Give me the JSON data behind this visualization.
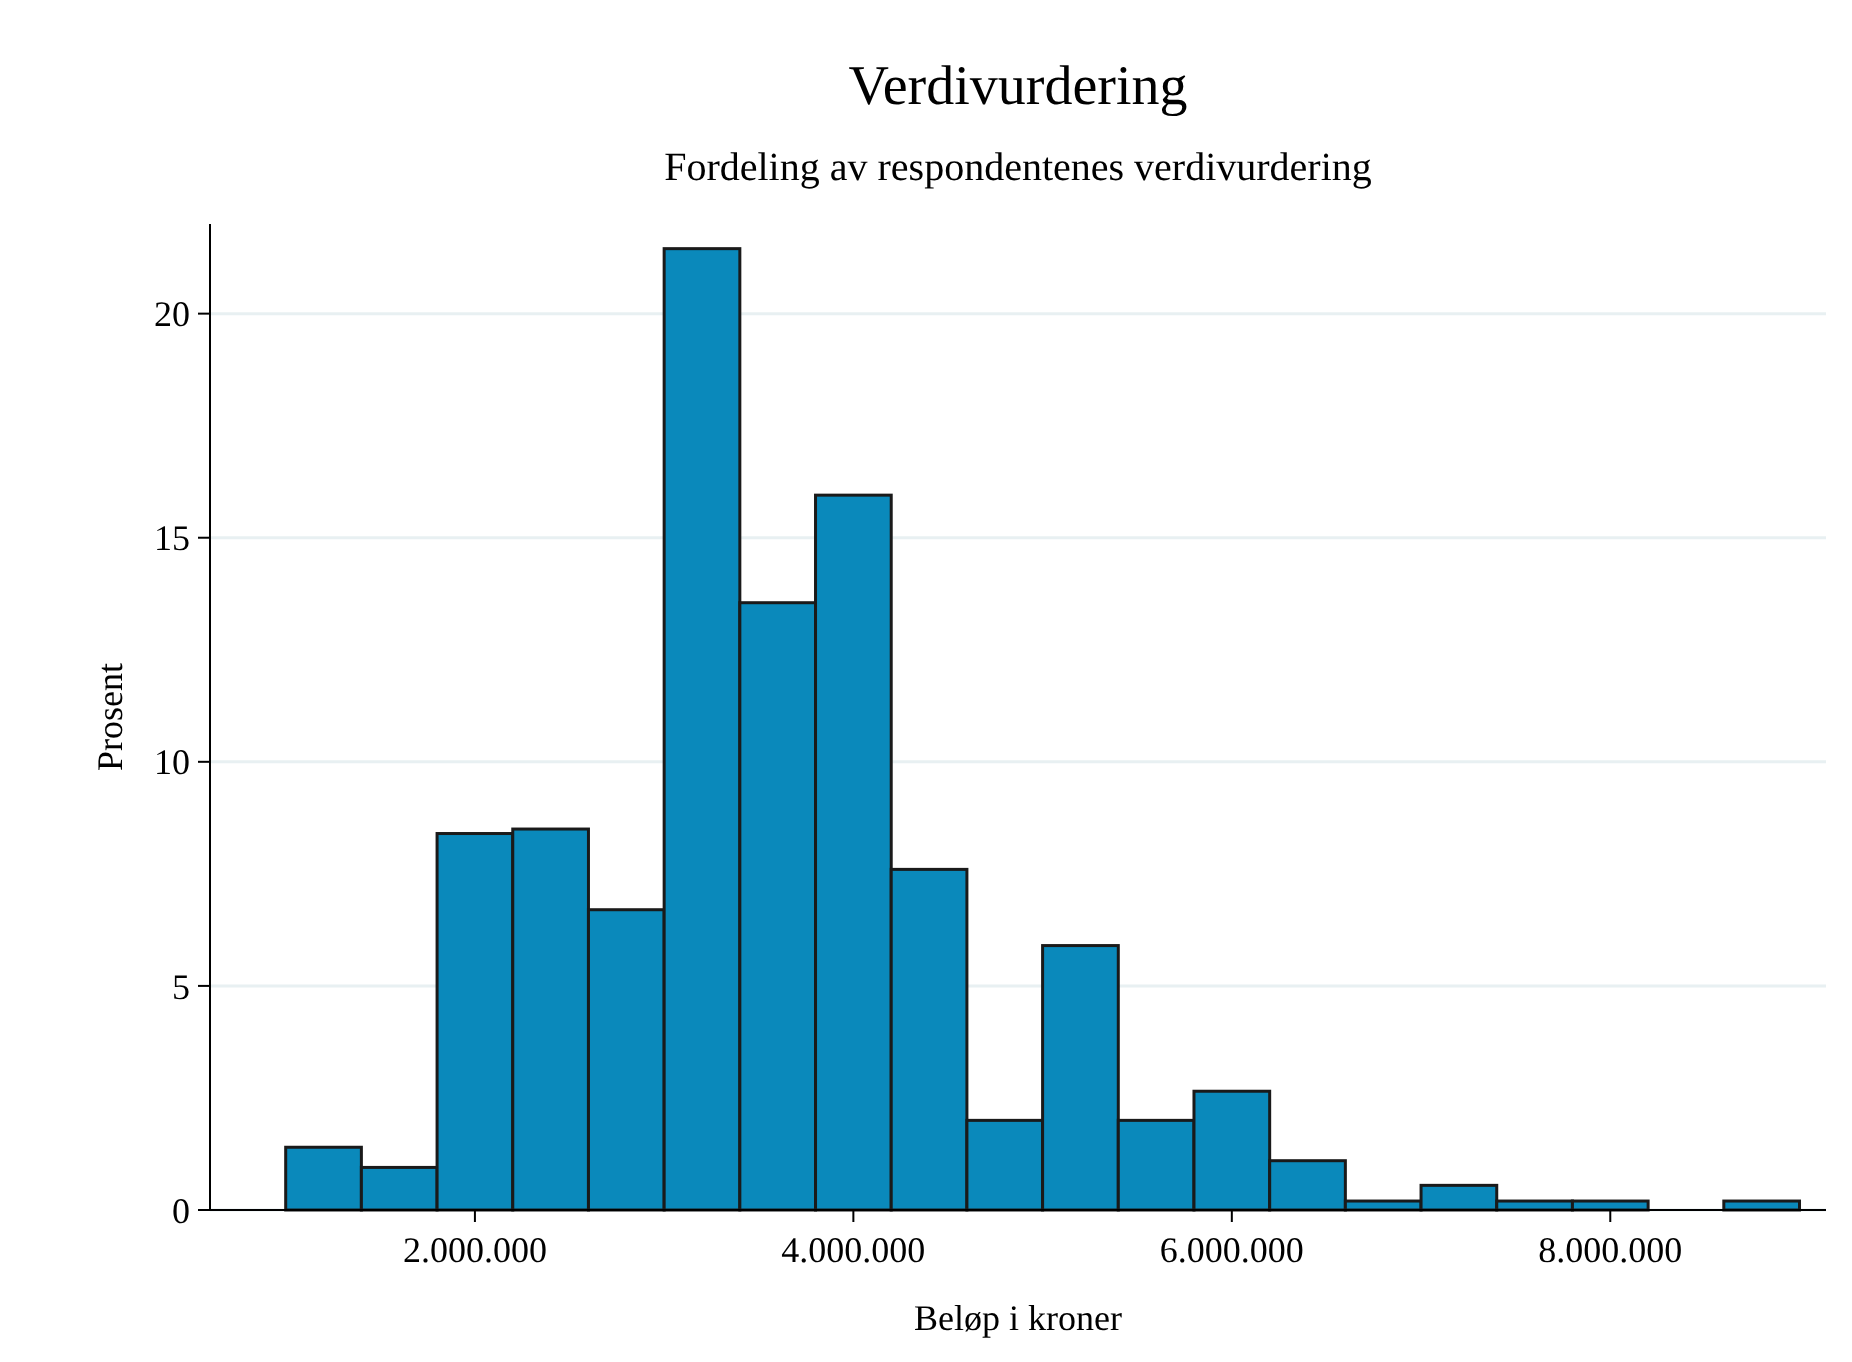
{
  "chart_data": {
    "type": "histogram",
    "title": "Verdivurdering",
    "subtitle": "Fordeling av respondentenes verdivurdering",
    "xlabel": "Beløp i kroner",
    "ylabel": "Prosent",
    "bins": [
      1000000,
      1400000,
      1800000,
      2200000,
      2600000,
      3000000,
      3400000,
      3800000,
      4200000,
      4600000,
      5000000,
      5400000,
      5800000,
      6200000,
      6600000,
      7000000,
      7400000,
      7800000,
      8200000,
      8600000,
      9000000
    ],
    "values": [
      1.4,
      0.95,
      8.4,
      8.5,
      6.7,
      21.45,
      13.55,
      15.95,
      7.6,
      2.0,
      5.9,
      2.0,
      2.65,
      1.1,
      0.2,
      0.55,
      0.2,
      0.2,
      0,
      0.2
    ],
    "color": "#0a89bb",
    "xlim": [
      600000,
      9140000
    ],
    "xticks": [
      {
        "value": 2000000,
        "label": "2.000.000"
      },
      {
        "value": 4000000,
        "label": "4.000.000"
      },
      {
        "value": 6000000,
        "label": "6.000.000"
      },
      {
        "value": 8000000,
        "label": "8.000.000"
      }
    ],
    "ylim": [
      0,
      22
    ],
    "yticks": [
      0,
      5,
      10,
      15,
      20
    ],
    "grid": "y"
  }
}
